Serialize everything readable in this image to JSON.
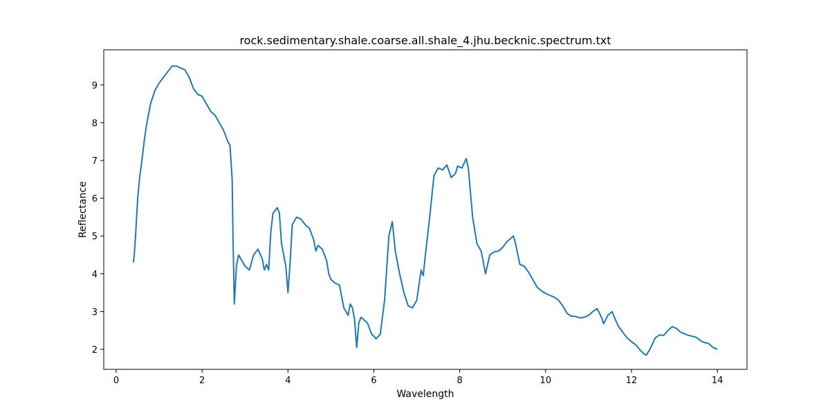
{
  "chart_data": {
    "type": "line",
    "title": "rock.sedimentary.shale.coarse.all.shale_4.jhu.becknic.spectrum.txt",
    "x_label": "Wavelength",
    "y_label": "Reflectance",
    "xlim": [
      -0.29,
      14.69
    ],
    "ylim": [
      1.47,
      9.93
    ],
    "xticks": [
      0,
      2,
      4,
      6,
      8,
      10,
      12,
      14
    ],
    "yticks": [
      2,
      3,
      4,
      5,
      6,
      7,
      8,
      9
    ],
    "series": [
      {
        "color": "#1f77b4",
        "x": [
          0.4,
          0.42,
          0.45,
          0.5,
          0.55,
          0.6,
          0.65,
          0.7,
          0.8,
          0.9,
          1.0,
          1.1,
          1.2,
          1.3,
          1.4,
          1.5,
          1.6,
          1.7,
          1.8,
          1.9,
          2.0,
          2.1,
          2.2,
          2.3,
          2.4,
          2.5,
          2.6,
          2.65,
          2.7,
          2.72,
          2.75,
          2.8,
          2.85,
          2.9,
          3.0,
          3.1,
          3.2,
          3.3,
          3.4,
          3.45,
          3.5,
          3.55,
          3.6,
          3.65,
          3.75,
          3.8,
          3.85,
          3.9,
          3.95,
          4.0,
          4.05,
          4.1,
          4.2,
          4.3,
          4.4,
          4.5,
          4.6,
          4.65,
          4.7,
          4.8,
          4.9,
          4.95,
          5.0,
          5.1,
          5.2,
          5.3,
          5.4,
          5.45,
          5.5,
          5.55,
          5.6,
          5.65,
          5.7,
          5.8,
          5.85,
          5.9,
          5.95,
          6.0,
          6.05,
          6.15,
          6.25,
          6.35,
          6.43,
          6.5,
          6.6,
          6.7,
          6.8,
          6.9,
          7.0,
          7.1,
          7.15,
          7.2,
          7.3,
          7.4,
          7.5,
          7.6,
          7.7,
          7.8,
          7.9,
          7.95,
          8.05,
          8.15,
          8.2,
          8.3,
          8.4,
          8.5,
          8.6,
          8.7,
          8.8,
          8.9,
          9.0,
          9.1,
          9.2,
          9.25,
          9.3,
          9.4,
          9.5,
          9.6,
          9.7,
          9.8,
          9.9,
          10.0,
          10.2,
          10.3,
          10.4,
          10.5,
          10.6,
          10.7,
          10.8,
          10.9,
          11.0,
          11.1,
          11.2,
          11.3,
          11.35,
          11.45,
          11.55,
          11.6,
          11.7,
          11.8,
          11.9,
          12.0,
          12.1,
          12.2,
          12.3,
          12.35,
          12.45,
          12.55,
          12.65,
          12.75,
          12.85,
          12.95,
          13.05,
          13.15,
          13.3,
          13.5,
          13.65,
          13.8,
          13.9,
          14.0
        ],
        "values": [
          4.3,
          4.5,
          5.0,
          6.0,
          6.6,
          7.0,
          7.5,
          7.9,
          8.5,
          8.85,
          9.05,
          9.2,
          9.35,
          9.5,
          9.5,
          9.45,
          9.4,
          9.2,
          8.9,
          8.75,
          8.7,
          8.5,
          8.3,
          8.2,
          8.0,
          7.8,
          7.5,
          7.4,
          6.5,
          5.0,
          3.2,
          4.2,
          4.5,
          4.4,
          4.2,
          4.1,
          4.5,
          4.65,
          4.4,
          4.1,
          4.25,
          4.1,
          5.1,
          5.6,
          5.75,
          5.6,
          4.8,
          4.5,
          4.2,
          3.5,
          4.3,
          5.3,
          5.5,
          5.45,
          5.3,
          5.2,
          4.9,
          4.6,
          4.75,
          4.65,
          4.35,
          4.0,
          3.85,
          3.75,
          3.7,
          3.1,
          2.9,
          3.2,
          3.1,
          2.8,
          2.05,
          2.7,
          2.85,
          2.75,
          2.7,
          2.55,
          2.4,
          2.35,
          2.28,
          2.4,
          3.3,
          5.0,
          5.38,
          4.6,
          4.0,
          3.5,
          3.15,
          3.1,
          3.3,
          4.1,
          3.95,
          4.5,
          5.5,
          6.6,
          6.8,
          6.75,
          6.88,
          6.55,
          6.65,
          6.85,
          6.8,
          7.05,
          6.8,
          5.5,
          4.8,
          4.6,
          4.0,
          4.5,
          4.58,
          4.6,
          4.7,
          4.85,
          4.95,
          5.0,
          4.8,
          4.25,
          4.2,
          4.05,
          3.85,
          3.65,
          3.55,
          3.48,
          3.38,
          3.3,
          3.15,
          2.95,
          2.88,
          2.87,
          2.83,
          2.85,
          2.9,
          3.0,
          3.08,
          2.85,
          2.68,
          2.9,
          3.0,
          2.85,
          2.6,
          2.45,
          2.3,
          2.2,
          2.12,
          1.98,
          1.87,
          1.85,
          2.05,
          2.3,
          2.38,
          2.37,
          2.5,
          2.6,
          2.55,
          2.45,
          2.38,
          2.32,
          2.2,
          2.15,
          2.05,
          2.0
        ]
      }
    ]
  }
}
